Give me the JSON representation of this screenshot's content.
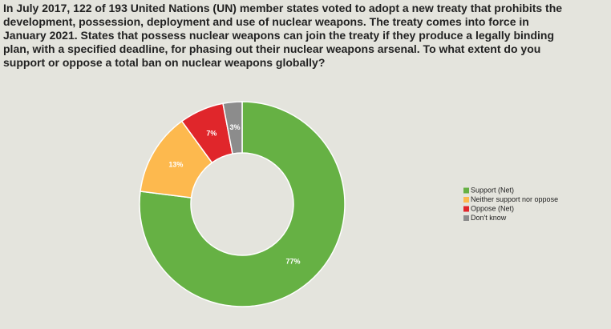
{
  "chart_data": {
    "type": "donut",
    "title": "In July 2017, 122 of 193 United Nations (UN) member states voted to adopt a new treaty that prohibits the development, possession, deployment and use of nuclear weapons. The treaty comes into force in January 2021. States that possess nuclear weapons can join the treaty if they produce a legally binding plan, with a specified deadline, for phasing out their nuclear weapons arsenal. To what extent do you support or oppose a total ban on nuclear weapons globally?",
    "categories": [
      "Support (Net)",
      "Neither support nor oppose",
      "Oppose (Net)",
      "Don't know"
    ],
    "values": [
      77,
      13,
      7,
      3
    ],
    "value_labels": [
      "77%",
      "13%",
      "7%",
      "3%"
    ],
    "colors": [
      "#66b144",
      "#fdb94e",
      "#e0262b",
      "#8c8c8c"
    ],
    "legend": "right"
  }
}
